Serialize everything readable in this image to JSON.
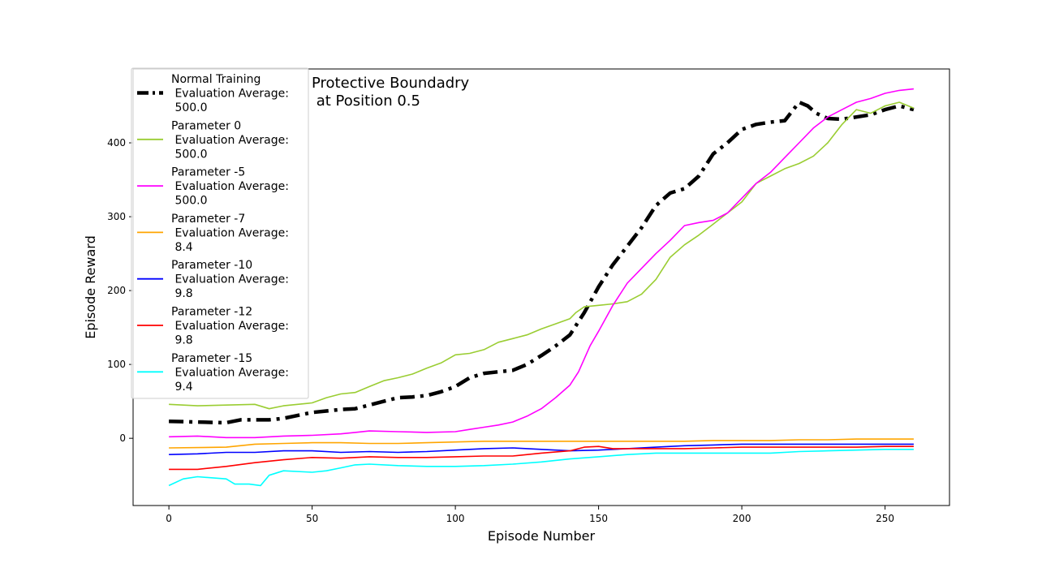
{
  "chart_data": {
    "type": "line",
    "title": "Protective Boundadry\n at Position 0.5",
    "xlabel": "Episode Number",
    "ylabel": "Episode Reward",
    "xlim": [
      -12.5,
      272.5
    ],
    "ylim": [
      -91,
      500
    ],
    "xticks": [
      0,
      50,
      100,
      150,
      200,
      250
    ],
    "yticks": [
      0,
      100,
      200,
      300,
      400
    ],
    "grid": false,
    "legend_position": "top-left",
    "series": [
      {
        "name": "Normal Training\n Evaluation Average:\n 500.0",
        "color": "#000000",
        "style": "dashdot-thick",
        "points": [
          [
            0,
            23
          ],
          [
            10,
            22
          ],
          [
            20,
            21
          ],
          [
            25,
            25
          ],
          [
            35,
            25
          ],
          [
            40,
            27
          ],
          [
            45,
            31
          ],
          [
            50,
            35
          ],
          [
            55,
            37
          ],
          [
            60,
            39
          ],
          [
            65,
            40
          ],
          [
            70,
            45
          ],
          [
            75,
            50
          ],
          [
            80,
            55
          ],
          [
            85,
            56
          ],
          [
            90,
            58
          ],
          [
            95,
            63
          ],
          [
            100,
            70
          ],
          [
            105,
            82
          ],
          [
            110,
            88
          ],
          [
            115,
            90
          ],
          [
            120,
            92
          ],
          [
            125,
            100
          ],
          [
            130,
            112
          ],
          [
            135,
            125
          ],
          [
            140,
            140
          ],
          [
            145,
            170
          ],
          [
            150,
            205
          ],
          [
            155,
            235
          ],
          [
            160,
            260
          ],
          [
            165,
            285
          ],
          [
            170,
            315
          ],
          [
            175,
            332
          ],
          [
            180,
            338
          ],
          [
            185,
            355
          ],
          [
            190,
            385
          ],
          [
            195,
            400
          ],
          [
            200,
            418
          ],
          [
            205,
            425
          ],
          [
            210,
            428
          ],
          [
            215,
            430
          ],
          [
            220,
            455
          ],
          [
            223,
            450
          ],
          [
            226,
            440
          ],
          [
            230,
            433
          ],
          [
            235,
            432
          ],
          [
            240,
            435
          ],
          [
            245,
            438
          ],
          [
            250,
            445
          ],
          [
            255,
            450
          ],
          [
            260,
            445
          ]
        ]
      },
      {
        "name": "Parameter 0\n Evaluation Average:\n 500.0",
        "color": "#9acd32",
        "style": "solid",
        "points": [
          [
            0,
            46
          ],
          [
            10,
            44
          ],
          [
            20,
            45
          ],
          [
            30,
            46
          ],
          [
            35,
            40
          ],
          [
            40,
            44
          ],
          [
            50,
            48
          ],
          [
            55,
            55
          ],
          [
            60,
            60
          ],
          [
            65,
            62
          ],
          [
            70,
            70
          ],
          [
            75,
            78
          ],
          [
            80,
            82
          ],
          [
            85,
            87
          ],
          [
            90,
            95
          ],
          [
            95,
            102
          ],
          [
            100,
            113
          ],
          [
            105,
            115
          ],
          [
            110,
            120
          ],
          [
            115,
            130
          ],
          [
            120,
            135
          ],
          [
            125,
            140
          ],
          [
            130,
            148
          ],
          [
            135,
            155
          ],
          [
            140,
            162
          ],
          [
            142,
            170
          ],
          [
            145,
            178
          ],
          [
            150,
            180
          ],
          [
            155,
            182
          ],
          [
            160,
            185
          ],
          [
            165,
            195
          ],
          [
            170,
            215
          ],
          [
            175,
            245
          ],
          [
            180,
            262
          ],
          [
            185,
            275
          ],
          [
            190,
            290
          ],
          [
            195,
            305
          ],
          [
            200,
            320
          ],
          [
            205,
            345
          ],
          [
            210,
            355
          ],
          [
            215,
            365
          ],
          [
            220,
            372
          ],
          [
            225,
            382
          ],
          [
            230,
            400
          ],
          [
            235,
            425
          ],
          [
            240,
            445
          ],
          [
            245,
            440
          ],
          [
            250,
            450
          ],
          [
            255,
            455
          ],
          [
            260,
            447
          ]
        ]
      },
      {
        "name": "Parameter -5\n Evaluation Average:\n 500.0",
        "color": "#ff00ff",
        "style": "solid",
        "points": [
          [
            0,
            2
          ],
          [
            10,
            3
          ],
          [
            20,
            1
          ],
          [
            30,
            1
          ],
          [
            40,
            3
          ],
          [
            50,
            4
          ],
          [
            60,
            6
          ],
          [
            65,
            8
          ],
          [
            70,
            10
          ],
          [
            80,
            9
          ],
          [
            90,
            8
          ],
          [
            100,
            9
          ],
          [
            105,
            12
          ],
          [
            110,
            15
          ],
          [
            115,
            18
          ],
          [
            120,
            22
          ],
          [
            125,
            30
          ],
          [
            130,
            40
          ],
          [
            135,
            55
          ],
          [
            140,
            72
          ],
          [
            143,
            90
          ],
          [
            147,
            125
          ],
          [
            150,
            145
          ],
          [
            155,
            180
          ],
          [
            160,
            210
          ],
          [
            165,
            230
          ],
          [
            170,
            250
          ],
          [
            175,
            268
          ],
          [
            180,
            288
          ],
          [
            185,
            292
          ],
          [
            190,
            295
          ],
          [
            195,
            305
          ],
          [
            200,
            325
          ],
          [
            205,
            345
          ],
          [
            210,
            360
          ],
          [
            215,
            380
          ],
          [
            220,
            400
          ],
          [
            225,
            420
          ],
          [
            230,
            435
          ],
          [
            235,
            445
          ],
          [
            240,
            455
          ],
          [
            245,
            460
          ],
          [
            250,
            467
          ],
          [
            255,
            471
          ],
          [
            260,
            473
          ]
        ]
      },
      {
        "name": "Parameter -7\n Evaluation Average:\n 8.4",
        "color": "#ffa500",
        "style": "solid",
        "points": [
          [
            0,
            -13
          ],
          [
            20,
            -12
          ],
          [
            30,
            -8
          ],
          [
            40,
            -7
          ],
          [
            50,
            -6
          ],
          [
            60,
            -6
          ],
          [
            70,
            -7
          ],
          [
            80,
            -7
          ],
          [
            90,
            -6
          ],
          [
            100,
            -5
          ],
          [
            110,
            -4
          ],
          [
            120,
            -4
          ],
          [
            130,
            -4
          ],
          [
            140,
            -4
          ],
          [
            150,
            -4
          ],
          [
            160,
            -4
          ],
          [
            170,
            -4
          ],
          [
            180,
            -4
          ],
          [
            190,
            -3
          ],
          [
            200,
            -3
          ],
          [
            210,
            -3
          ],
          [
            220,
            -2
          ],
          [
            230,
            -2
          ],
          [
            240,
            -1
          ],
          [
            250,
            -1
          ],
          [
            260,
            -1
          ]
        ]
      },
      {
        "name": "Parameter -10\n Evaluation Average:\n 9.8",
        "color": "#0000ff",
        "style": "solid",
        "points": [
          [
            0,
            -22
          ],
          [
            10,
            -21
          ],
          [
            20,
            -19
          ],
          [
            30,
            -19
          ],
          [
            40,
            -17
          ],
          [
            50,
            -17
          ],
          [
            60,
            -19
          ],
          [
            70,
            -18
          ],
          [
            80,
            -19
          ],
          [
            90,
            -18
          ],
          [
            100,
            -16
          ],
          [
            110,
            -14
          ],
          [
            120,
            -13
          ],
          [
            130,
            -15
          ],
          [
            140,
            -17
          ],
          [
            150,
            -16
          ],
          [
            160,
            -14
          ],
          [
            170,
            -12
          ],
          [
            180,
            -10
          ],
          [
            190,
            -9
          ],
          [
            200,
            -8
          ],
          [
            210,
            -8
          ],
          [
            220,
            -8
          ],
          [
            230,
            -8
          ],
          [
            240,
            -8
          ],
          [
            250,
            -8
          ],
          [
            260,
            -8
          ]
        ]
      },
      {
        "name": "Parameter -12\n Evaluation Average:\n 9.8",
        "color": "#ff0000",
        "style": "solid",
        "points": [
          [
            0,
            -42
          ],
          [
            10,
            -42
          ],
          [
            20,
            -38
          ],
          [
            30,
            -33
          ],
          [
            40,
            -29
          ],
          [
            50,
            -26
          ],
          [
            60,
            -27
          ],
          [
            70,
            -25
          ],
          [
            80,
            -26
          ],
          [
            90,
            -26
          ],
          [
            100,
            -25
          ],
          [
            110,
            -24
          ],
          [
            120,
            -24
          ],
          [
            130,
            -20
          ],
          [
            140,
            -17
          ],
          [
            145,
            -12
          ],
          [
            150,
            -11
          ],
          [
            155,
            -14
          ],
          [
            160,
            -14
          ],
          [
            170,
            -14
          ],
          [
            180,
            -14
          ],
          [
            190,
            -13
          ],
          [
            200,
            -12
          ],
          [
            210,
            -12
          ],
          [
            220,
            -12
          ],
          [
            230,
            -12
          ],
          [
            240,
            -12
          ],
          [
            250,
            -11
          ],
          [
            260,
            -11
          ]
        ]
      },
      {
        "name": "Parameter -15\n Evaluation Average:\n 9.4",
        "color": "#00ffff",
        "style": "solid",
        "points": [
          [
            0,
            -64
          ],
          [
            5,
            -55
          ],
          [
            10,
            -52
          ],
          [
            20,
            -55
          ],
          [
            23,
            -62
          ],
          [
            28,
            -62
          ],
          [
            32,
            -64
          ],
          [
            35,
            -50
          ],
          [
            40,
            -44
          ],
          [
            50,
            -46
          ],
          [
            55,
            -44
          ],
          [
            60,
            -40
          ],
          [
            65,
            -36
          ],
          [
            70,
            -35
          ],
          [
            80,
            -37
          ],
          [
            90,
            -38
          ],
          [
            100,
            -38
          ],
          [
            110,
            -37
          ],
          [
            120,
            -35
          ],
          [
            130,
            -32
          ],
          [
            140,
            -28
          ],
          [
            150,
            -25
          ],
          [
            160,
            -22
          ],
          [
            170,
            -20
          ],
          [
            180,
            -20
          ],
          [
            190,
            -20
          ],
          [
            200,
            -20
          ],
          [
            210,
            -20
          ],
          [
            220,
            -18
          ],
          [
            230,
            -17
          ],
          [
            240,
            -16
          ],
          [
            250,
            -15
          ],
          [
            260,
            -15
          ]
        ]
      }
    ]
  }
}
